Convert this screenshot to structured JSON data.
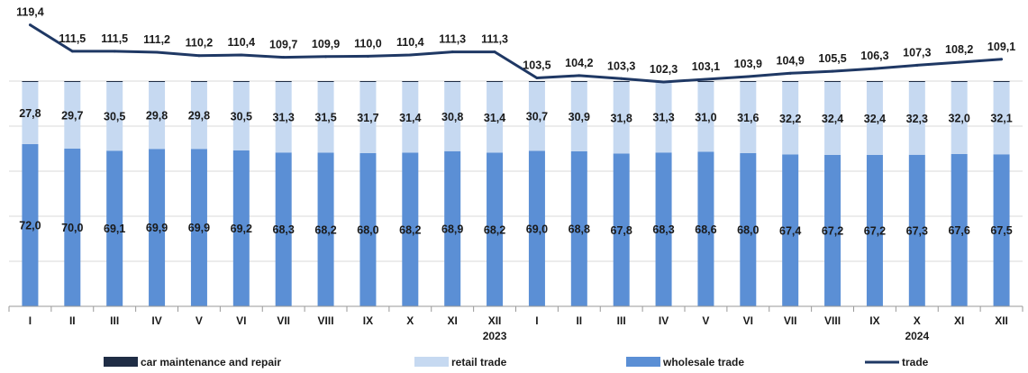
{
  "chart_data": {
    "type": "bar",
    "stacked": true,
    "categories": [
      "I",
      "II",
      "III",
      "IV",
      "V",
      "VI",
      "VII",
      "VIII",
      "IX",
      "X",
      "XI",
      "XII",
      "I",
      "II",
      "III",
      "IV",
      "V",
      "VI",
      "VII",
      "VIII",
      "IX",
      "X",
      "XI",
      "XII"
    ],
    "year_labels": [
      {
        "text": "2023",
        "under_category_index": 11
      },
      {
        "text": "2024",
        "under_category_index": 21
      }
    ],
    "series": [
      {
        "name": "wholesale trade",
        "kind": "bar",
        "color": "#5b8fd5",
        "values": [
          72.0,
          70.0,
          69.1,
          69.9,
          69.9,
          69.2,
          68.3,
          68.2,
          68.0,
          68.2,
          68.9,
          68.2,
          69.0,
          68.8,
          67.8,
          68.3,
          68.6,
          68.0,
          67.4,
          67.2,
          67.2,
          67.3,
          67.6,
          67.5
        ],
        "labels": [
          "72,0",
          "70,0",
          "69,1",
          "69,9",
          "69,9",
          "69,2",
          "68,3",
          "68,2",
          "68,0",
          "68,2",
          "68,9",
          "68,2",
          "69,0",
          "68,8",
          "67,8",
          "68,3",
          "68,6",
          "68,0",
          "67,4",
          "67,2",
          "67,2",
          "67,3",
          "67,6",
          "67,5"
        ]
      },
      {
        "name": "retail trade",
        "kind": "bar",
        "color": "#c6d9f1",
        "values": [
          27.8,
          29.7,
          30.5,
          29.8,
          29.8,
          30.5,
          31.3,
          31.5,
          31.7,
          31.4,
          30.8,
          31.4,
          30.7,
          30.9,
          31.8,
          31.3,
          31.0,
          31.6,
          32.2,
          32.4,
          32.4,
          32.3,
          32.0,
          32.1
        ],
        "labels": [
          "27,8",
          "29,7",
          "30,5",
          "29,8",
          "29,8",
          "30,5",
          "31,3",
          "31,5",
          "31,7",
          "31,4",
          "30,8",
          "31,4",
          "30,7",
          "30,9",
          "31,8",
          "31,3",
          "31,0",
          "31,6",
          "32,2",
          "32,4",
          "32,4",
          "32,3",
          "32,0",
          "32,1"
        ]
      },
      {
        "name": "car maintenance and repair",
        "kind": "bar",
        "color": "#1f2d45",
        "values": [
          0.2,
          0.3,
          0.4,
          0.3,
          0.3,
          0.3,
          0.4,
          0.3,
          0.3,
          0.4,
          0.3,
          0.4,
          0.3,
          0.3,
          0.4,
          0.4,
          0.4,
          0.4,
          0.4,
          0.4,
          0.4,
          0.4,
          0.4,
          0.4
        ]
      },
      {
        "name": "trade",
        "kind": "line",
        "color": "#1f3864",
        "values": [
          119.4,
          111.5,
          111.5,
          111.2,
          110.2,
          110.4,
          109.7,
          109.9,
          110.0,
          110.4,
          111.3,
          111.3,
          103.5,
          104.2,
          103.3,
          102.3,
          103.1,
          103.9,
          104.9,
          105.5,
          106.3,
          107.3,
          108.2,
          109.1
        ],
        "labels": [
          "119,4",
          "111,5",
          "111,5",
          "111,2",
          "110,2",
          "110,4",
          "109,7",
          "109,9",
          "110,0",
          "110,4",
          "111,3",
          "111,3",
          "103,5",
          "104,2",
          "103,3",
          "102,3",
          "103,1",
          "103,9",
          "104,9",
          "105,5",
          "106,3",
          "107,3",
          "108,2",
          "109,1"
        ]
      }
    ],
    "legend": {
      "position": "bottom",
      "items": [
        {
          "label": "car maintenance and repair",
          "color": "#1f2d45",
          "shape": "box"
        },
        {
          "label": "retail trade",
          "color": "#c6d9f1",
          "shape": "box"
        },
        {
          "label": "wholesale trade",
          "color": "#5b8fd5",
          "shape": "box"
        },
        {
          "label": "trade",
          "color": "#1f3864",
          "shape": "line"
        }
      ]
    },
    "ylim": [
      0,
      100
    ],
    "line_ylim": [
      95,
      122
    ],
    "grid": true
  }
}
